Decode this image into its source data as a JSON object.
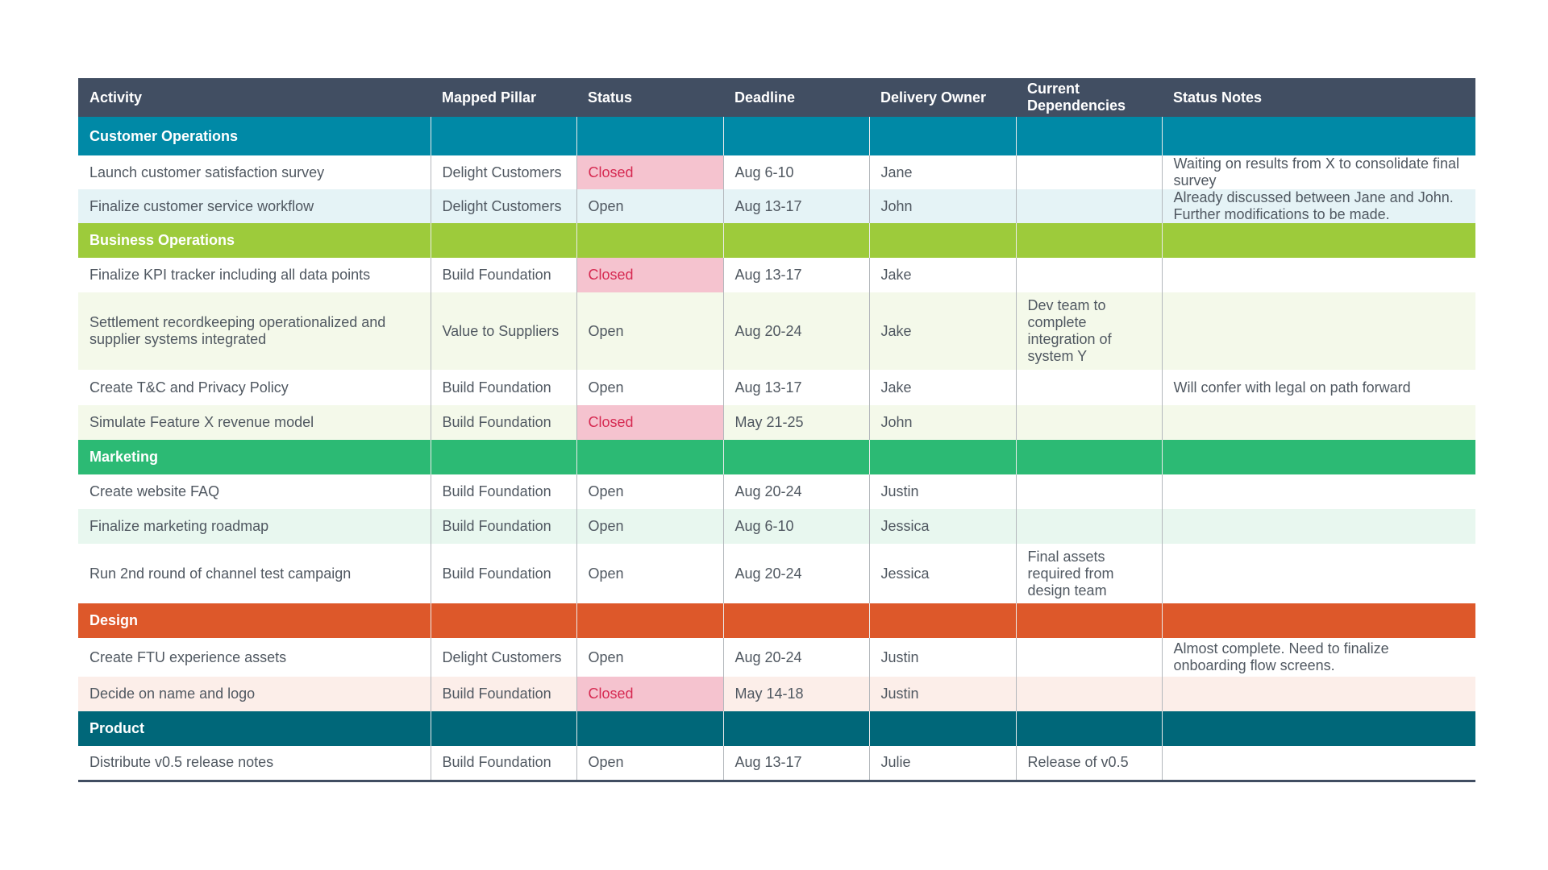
{
  "table": {
    "headers": [
      "Activity",
      "Mapped Pillar",
      "Status",
      "Deadline",
      "Delivery Owner",
      "Current Dependencies",
      "Status Notes"
    ]
  },
  "sections": [
    {
      "name": "Customer Operations",
      "rows": [
        {
          "activity": "Launch customer satisfaction survey",
          "pillar": "Delight Customers",
          "status": "Closed",
          "deadline": "Aug 6-10",
          "owner": "Jane",
          "dependencies": "",
          "notes": "Waiting on results from X to consolidate final survey"
        },
        {
          "activity": "Finalize customer service workflow",
          "pillar": "Delight Customers",
          "status": "Open",
          "deadline": "Aug 13-17",
          "owner": "John",
          "dependencies": "",
          "notes": "Already discussed between Jane and John. Further modifications to be made."
        }
      ]
    },
    {
      "name": "Business Operations",
      "rows": [
        {
          "activity": "Finalize KPI tracker including all data points",
          "pillar": "Build Foundation",
          "status": "Closed",
          "deadline": "Aug 13-17",
          "owner": "Jake",
          "dependencies": "",
          "notes": ""
        },
        {
          "activity": "Settlement recordkeeping operationalized and supplier systems integrated",
          "pillar": "Value to Suppliers",
          "status": "Open",
          "deadline": "Aug 20-24",
          "owner": "Jake",
          "dependencies": "Dev team to complete integration of system Y",
          "notes": ""
        },
        {
          "activity": "Create T&C and Privacy Policy",
          "pillar": "Build Foundation",
          "status": "Open",
          "deadline": "Aug 13-17",
          "owner": "Jake",
          "dependencies": "",
          "notes": "Will confer with legal on path forward"
        },
        {
          "activity": "Simulate Feature X revenue model",
          "pillar": "Build Foundation",
          "status": "Closed",
          "deadline": "May 21-25",
          "owner": "John",
          "dependencies": "",
          "notes": ""
        }
      ]
    },
    {
      "name": "Marketing",
      "rows": [
        {
          "activity": "Create website FAQ",
          "pillar": "Build Foundation",
          "status": "Open",
          "deadline": "Aug 20-24",
          "owner": "Justin",
          "dependencies": "",
          "notes": ""
        },
        {
          "activity": "Finalize marketing roadmap",
          "pillar": "Build Foundation",
          "status": "Open",
          "deadline": "Aug 6-10",
          "owner": "Jessica",
          "dependencies": "",
          "notes": ""
        },
        {
          "activity": "Run 2nd round of channel test campaign",
          "pillar": "Build Foundation",
          "status": "Open",
          "deadline": "Aug 20-24",
          "owner": "Jessica",
          "dependencies": "Final assets required from design team",
          "notes": ""
        }
      ]
    },
    {
      "name": "Design",
      "rows": [
        {
          "activity": "Create FTU experience assets",
          "pillar": "Delight Customers",
          "status": "Open",
          "deadline": "Aug 20-24",
          "owner": "Justin",
          "dependencies": "",
          "notes": "Almost complete. Need to finalize onboarding flow screens."
        },
        {
          "activity": "Decide on name and logo",
          "pillar": "Build Foundation",
          "status": "Closed",
          "deadline": "May 14-18",
          "owner": "Justin",
          "dependencies": "",
          "notes": ""
        }
      ]
    },
    {
      "name": "Product",
      "rows": [
        {
          "activity": "Distribute v0.5 release notes",
          "pillar": "Build Foundation",
          "status": "Open",
          "deadline": "Aug 13-17",
          "owner": "Julie",
          "dependencies": "Release of v0.5",
          "notes": ""
        }
      ]
    }
  ],
  "colors": {
    "header": "#414e62",
    "customer_operations": "#0089a6",
    "business_operations": "#9dcb3b",
    "marketing": "#2cba74",
    "design": "#dd582a",
    "product": "#006779",
    "closed_fill": "#f5c3cf",
    "closed_text": "#d62a52"
  }
}
